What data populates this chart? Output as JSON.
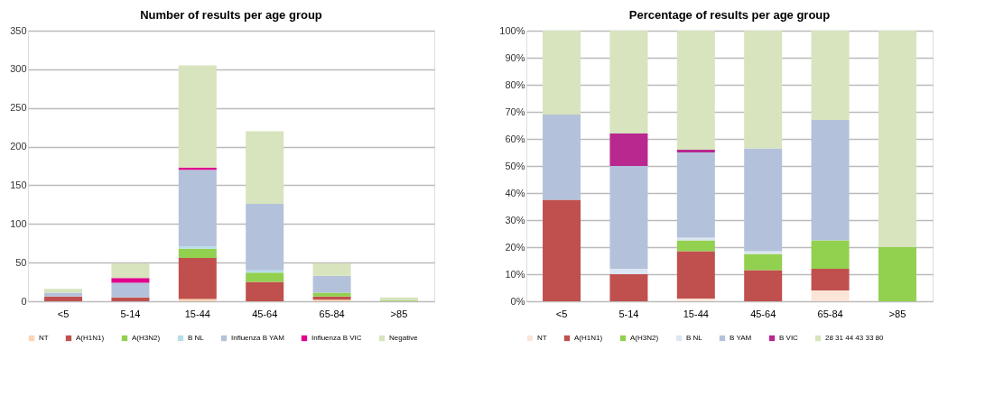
{
  "chart_data": [
    {
      "type": "bar",
      "stacked": true,
      "title": "Number of results per age group",
      "categories": [
        "<5",
        "5-14",
        "15-44",
        "45-64",
        "65-84",
        ">85"
      ],
      "ylim": [
        0,
        350
      ],
      "yticks": [
        0,
        50,
        100,
        150,
        200,
        250,
        300,
        350
      ],
      "grid": "y",
      "legend": "bottom",
      "series": [
        {
          "name": "NT",
          "color": "#fbd5b5",
          "values": [
            0,
            0,
            3,
            0,
            2,
            0
          ]
        },
        {
          "name": "A(H1N1)",
          "color": "#c0504d",
          "values": [
            6,
            5,
            53,
            25,
            4,
            0
          ]
        },
        {
          "name": "A(H3N2)",
          "color": "#92d050",
          "values": [
            0,
            0,
            12,
            12,
            5,
            1
          ]
        },
        {
          "name": "B NL",
          "color": "#b7dde8",
          "values": [
            0,
            null,
            3,
            3,
            0,
            0
          ]
        },
        {
          "name": "Influenza B YAM",
          "color": "#b3c2da",
          "values": [
            5,
            19,
            99,
            86,
            22,
            0
          ]
        },
        {
          "name": "Influenza B VIC",
          "color": "#e0008c",
          "values": [
            0,
            6,
            3,
            0,
            0,
            0
          ]
        },
        {
          "name": "Negative",
          "color": "#d7e4bd",
          "values": [
            5,
            19,
            132,
            94,
            16,
            4
          ]
        }
      ]
    },
    {
      "type": "bar",
      "stacked": true,
      "title": "Percentage of results per age group",
      "categories": [
        "<5",
        "5-14",
        "15-44",
        "45-64",
        "65-84",
        ">85"
      ],
      "ylim": [
        0,
        100
      ],
      "yticks": [
        {
          "value": 0,
          "label": "0%"
        },
        {
          "value": 10,
          "label": "10%"
        },
        {
          "value": 20,
          "label": "20%"
        },
        {
          "value": 30,
          "label": "30%"
        },
        {
          "value": 40,
          "label": "40%"
        },
        {
          "value": 50,
          "label": "50%"
        },
        {
          "value": 60,
          "label": "60%"
        },
        {
          "value": 70,
          "label": "70%"
        },
        {
          "value": 80,
          "label": "80%"
        },
        {
          "value": 90,
          "label": "90%"
        },
        {
          "value": 100,
          "label": "100%"
        }
      ],
      "grid": "y",
      "legend": "bottom",
      "series": [
        {
          "name": "NT",
          "color": "#fbe5d6",
          "values": [
            0,
            0,
            1,
            0,
            4,
            0
          ]
        },
        {
          "name": "A(H1N1)",
          "color": "#c0504d",
          "values": [
            37.5,
            10,
            17.5,
            11.5,
            8,
            0
          ]
        },
        {
          "name": "A(H3N2)",
          "color": "#92d050",
          "values": [
            0,
            0,
            4,
            6,
            10.5,
            20
          ]
        },
        {
          "name": "B NL",
          "color": "#dce6f2",
          "values": [
            0,
            2,
            1,
            1,
            0,
            0
          ]
        },
        {
          "name": "B YAM",
          "color": "#b3c2da",
          "values": [
            31.5,
            38,
            31.5,
            38,
            44.5,
            0
          ]
        },
        {
          "name": "B VIC",
          "color": "#b8288f",
          "values": [
            0,
            12,
            1,
            0,
            0,
            0
          ]
        },
        {
          "name": "28 31 44 43 33 80",
          "color": "#d7e4bd",
          "values": [
            31,
            38,
            44,
            43.5,
            33,
            80
          ]
        }
      ]
    }
  ]
}
